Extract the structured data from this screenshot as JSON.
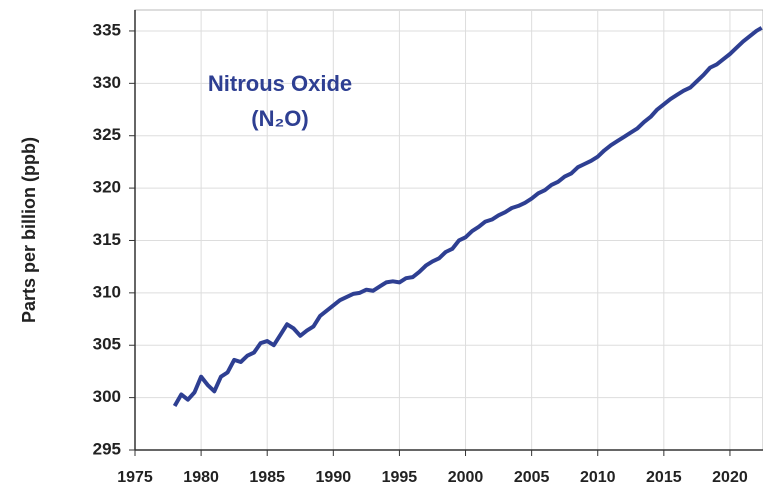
{
  "chart_data": {
    "type": "line",
    "title": "Nitrous Oxide",
    "subtitle": "(N₂O)",
    "y_label": "Parts per billion (ppb)",
    "color": "#2e3f92",
    "grid": true,
    "xlim": [
      1975,
      2022.5
    ],
    "xticks": [
      1975,
      1980,
      1985,
      1990,
      1995,
      2000,
      2005,
      2010,
      2015,
      2020
    ],
    "ylim": [
      295,
      337
    ],
    "yticks": [
      295,
      300,
      305,
      310,
      315,
      320,
      325,
      330,
      335
    ],
    "x": [
      1978.0,
      1978.5,
      1979.0,
      1979.5,
      1980.0,
      1980.5,
      1981.0,
      1981.5,
      1982.0,
      1982.5,
      1983.0,
      1983.5,
      1984.0,
      1984.5,
      1985.0,
      1985.5,
      1986.0,
      1986.5,
      1987.0,
      1987.5,
      1988.0,
      1988.5,
      1989.0,
      1989.5,
      1990.0,
      1990.5,
      1991.0,
      1991.5,
      1992.0,
      1992.5,
      1993.0,
      1993.5,
      1994.0,
      1994.5,
      1995.0,
      1995.5,
      1996.0,
      1996.5,
      1997.0,
      1997.5,
      1998.0,
      1998.5,
      1999.0,
      1999.5,
      2000.0,
      2000.5,
      2001.0,
      2001.5,
      2002.0,
      2002.5,
      2003.0,
      2003.5,
      2004.0,
      2004.5,
      2005.0,
      2005.5,
      2006.0,
      2006.5,
      2007.0,
      2007.5,
      2008.0,
      2008.5,
      2009.0,
      2009.5,
      2010.0,
      2010.5,
      2011.0,
      2011.5,
      2012.0,
      2012.5,
      2013.0,
      2013.5,
      2014.0,
      2014.5,
      2015.0,
      2015.5,
      2016.0,
      2016.5,
      2017.0,
      2017.5,
      2018.0,
      2018.5,
      2019.0,
      2019.5,
      2020.0,
      2020.5,
      2021.0,
      2021.5,
      2022.0,
      2022.4
    ],
    "values": [
      299.2,
      300.3,
      299.8,
      300.5,
      302.0,
      301.2,
      300.6,
      302.0,
      302.4,
      303.6,
      303.4,
      304.0,
      304.3,
      305.2,
      305.4,
      305.0,
      306.0,
      307.0,
      306.6,
      305.9,
      306.4,
      306.8,
      307.8,
      308.3,
      308.8,
      309.3,
      309.6,
      309.9,
      310.0,
      310.3,
      310.2,
      310.6,
      311.0,
      311.1,
      311.0,
      311.4,
      311.5,
      312.0,
      312.6,
      313.0,
      313.3,
      313.9,
      314.2,
      315.0,
      315.3,
      315.9,
      316.3,
      316.8,
      317.0,
      317.4,
      317.7,
      318.1,
      318.3,
      318.6,
      319.0,
      319.5,
      319.8,
      320.3,
      320.6,
      321.1,
      321.4,
      322.0,
      322.3,
      322.6,
      323.0,
      323.6,
      324.1,
      324.5,
      324.9,
      325.3,
      325.7,
      326.3,
      326.8,
      327.5,
      328.0,
      328.5,
      328.9,
      329.3,
      329.6,
      330.2,
      330.8,
      331.5,
      331.8,
      332.3,
      332.8,
      333.4,
      334.0,
      334.5,
      335.0,
      335.3
    ]
  }
}
